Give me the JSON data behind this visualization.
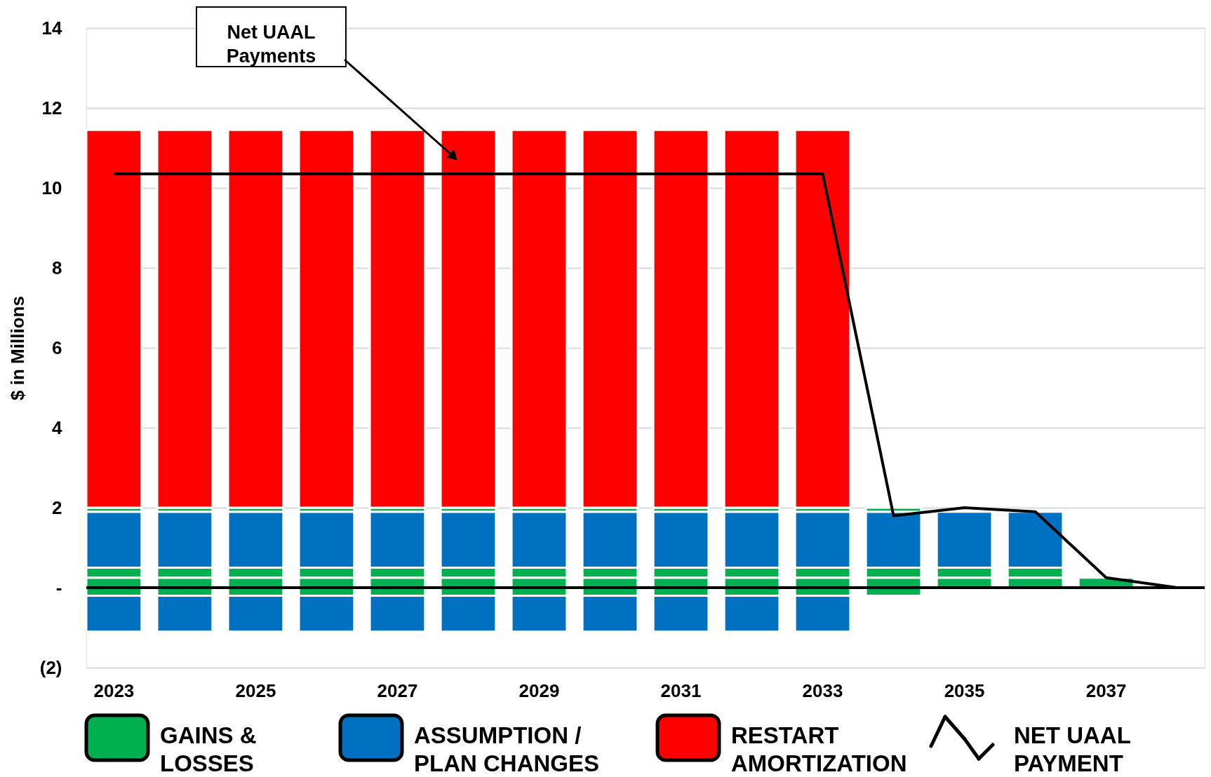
{
  "chart_data": {
    "type": "bar",
    "stacked": true,
    "ylabel": "$ in Millions",
    "categories": [
      "2023",
      null,
      "2025",
      null,
      "2027",
      null,
      "2029",
      null,
      "2031",
      null,
      "2033",
      null,
      "2035",
      null,
      "2037",
      null
    ],
    "series": [
      {
        "name": "GAINS & LOSSES",
        "color": "#00b050",
        "values": [
          0.25,
          0.25,
          0.25,
          0.25,
          0.25,
          0.25,
          0.25,
          0.25,
          0.25,
          0.25,
          0.25,
          0.25,
          0.25,
          0.25,
          0.25,
          null
        ]
      },
      {
        "color": "#00b050",
        "values": [
          0.25,
          0.25,
          0.25,
          0.25,
          0.25,
          0.25,
          0.25,
          0.25,
          0.25,
          0.25,
          0.25,
          0.25,
          0.25,
          0.25,
          null,
          null
        ]
      },
      {
        "name": "ASSUMPTION / PLAN CHANGES",
        "color": "#0070c0",
        "values": [
          1.4,
          1.4,
          1.4,
          1.4,
          1.4,
          1.4,
          1.4,
          1.4,
          1.4,
          1.4,
          1.4,
          1.4,
          1.4,
          1.4,
          null,
          null
        ]
      },
      {
        "color": "#00b050",
        "values": [
          0.1,
          0.1,
          0.1,
          0.1,
          0.1,
          0.1,
          0.1,
          0.1,
          0.1,
          0.1,
          0.1,
          0.1,
          null,
          null,
          null,
          null
        ]
      },
      {
        "name": "RESTART AMORTIZATION",
        "color": "#ff0000",
        "values": [
          9.45,
          9.45,
          9.45,
          9.45,
          9.45,
          9.45,
          9.45,
          9.45,
          9.45,
          9.45,
          9.45,
          null,
          null,
          null,
          null,
          null
        ]
      },
      {
        "color": "#00b050",
        "values": [
          -0.2,
          -0.2,
          -0.2,
          -0.2,
          -0.2,
          -0.2,
          -0.2,
          -0.2,
          -0.2,
          -0.2,
          -0.2,
          -0.2,
          null,
          null,
          null,
          null
        ]
      },
      {
        "color": "#0070c0",
        "values": [
          -0.9,
          -0.9,
          -0.9,
          -0.9,
          -0.9,
          -0.9,
          -0.9,
          -0.9,
          -0.9,
          -0.9,
          -0.9,
          null,
          null,
          null,
          null,
          null
        ]
      },
      {
        "name": "NET UAAL PAYMENT",
        "type": "line",
        "color": "#000000",
        "values": [
          10.35,
          10.35,
          10.35,
          10.35,
          10.35,
          10.35,
          10.35,
          10.35,
          10.35,
          10.35,
          10.35,
          1.8,
          2.0,
          1.9,
          0.25,
          0
        ]
      }
    ],
    "ylim": [
      -2,
      14
    ],
    "yticks": [
      {
        "value": -2,
        "label": "(2)"
      },
      {
        "value": 0,
        "label": "-"
      },
      2,
      4,
      6,
      8,
      10,
      12,
      14
    ],
    "grid": "y",
    "legend": "bottom",
    "ref_lines": [
      {
        "axis": "y",
        "value": 0,
        "color": "#000000"
      }
    ],
    "annotations": [
      "Net UAAL Payments"
    ]
  }
}
